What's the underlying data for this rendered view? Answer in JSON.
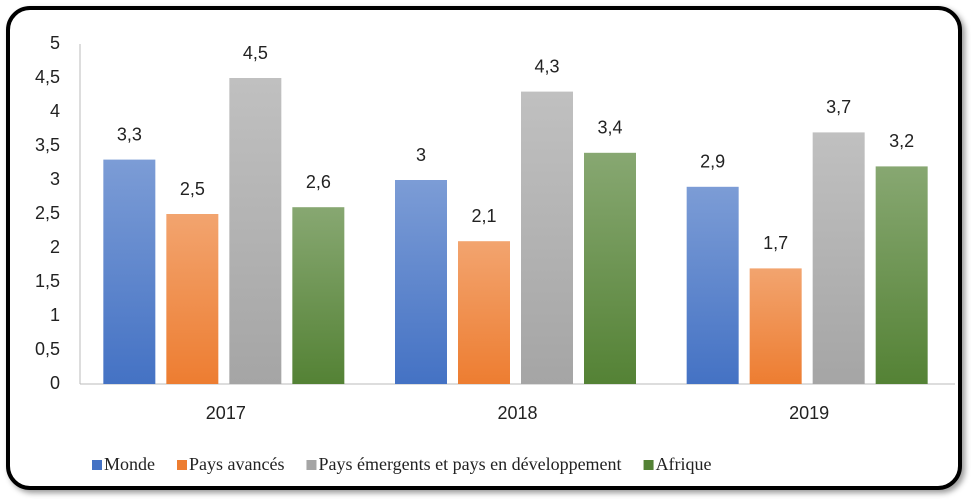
{
  "chart_data": {
    "type": "bar",
    "categories": [
      "2017",
      "2018",
      "2019"
    ],
    "series": [
      {
        "name": "Monde",
        "color": "#4472c4",
        "values": [
          3.3,
          3,
          2.9
        ],
        "value_labels": [
          "3,3",
          "3",
          "2,9"
        ]
      },
      {
        "name": "Pays avancés",
        "color": "#ed7d31",
        "values": [
          2.5,
          2.1,
          1.7
        ],
        "value_labels": [
          "2,5",
          "2,1",
          "1,7"
        ]
      },
      {
        "name": "Pays émergents et pays en développement",
        "color": "#a5a5a5",
        "values": [
          4.5,
          4.3,
          3.7
        ],
        "value_labels": [
          "4,5",
          "4,3",
          "3,7"
        ]
      },
      {
        "name": "Afrique",
        "color": "#548235",
        "values": [
          2.6,
          3.4,
          3.2
        ],
        "value_labels": [
          "2,6",
          "3,4",
          "3,2"
        ]
      }
    ],
    "ylim": [
      0,
      5
    ],
    "yticks": [
      0,
      {
        "value": 0.5,
        "label": "0,5"
      },
      1,
      {
        "value": 1.5,
        "label": "1,5"
      },
      2,
      {
        "value": 2.5,
        "label": "2,5"
      },
      3,
      {
        "value": 3.5,
        "label": "3,5"
      },
      4,
      {
        "value": 4.5,
        "label": "4,5"
      },
      5
    ],
    "grid": false,
    "legend": "bottom"
  }
}
